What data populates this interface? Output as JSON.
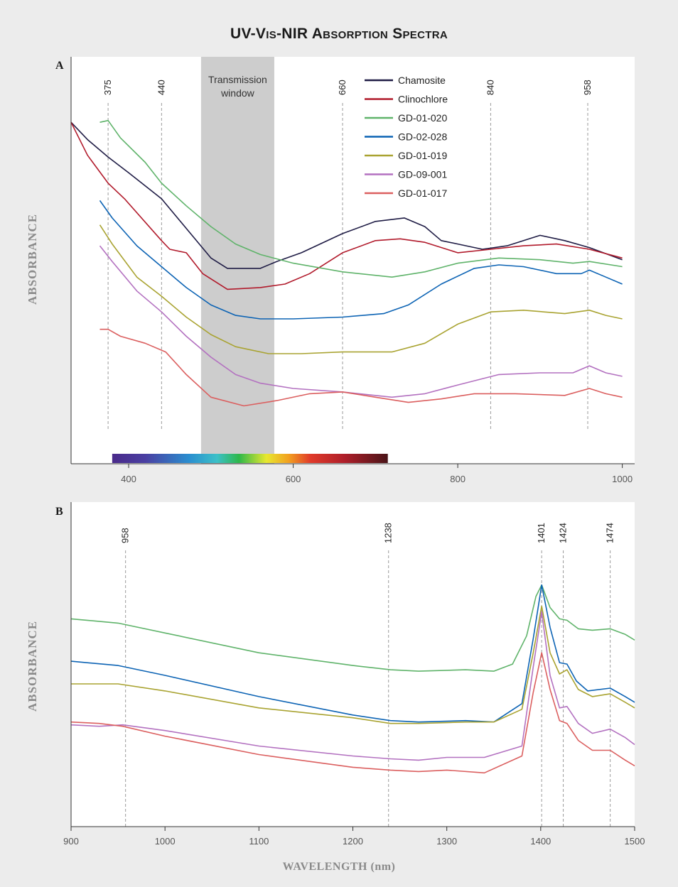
{
  "title": "UV-Vis-NIR Absorption Spectra",
  "xlabel": "WAVELENGTH (nm)",
  "colors": {
    "Chamosite": "#1f1c45",
    "Clinochlore": "#b11a2b",
    "GD-01-020": "#5fb36a",
    "GD-02-028": "#0c63b4",
    "GD-01-019": "#a9a331",
    "GD-09-001": "#b371c0",
    "GD-01-017": "#db5f5f"
  },
  "chart_data": [
    {
      "panel": "A",
      "type": "line",
      "xlabel": "",
      "ylabel": "ABSORBANCE",
      "xlim": [
        330,
        1015
      ],
      "ylim": [
        0,
        1
      ],
      "xticks": [
        400,
        600,
        800,
        1000
      ],
      "grid": false,
      "legend": "top-right",
      "markers": [
        375,
        440,
        660,
        840,
        958
      ],
      "shaded_band": {
        "label_line1": "Transmission",
        "label_line2": "window",
        "x": [
          488,
          577
        ]
      },
      "spectrum_bar_x": [
        380,
        715
      ],
      "series": [
        {
          "name": "Chamosite",
          "points": [
            [
              330,
              0.965
            ],
            [
              350,
              0.915
            ],
            [
              375,
              0.865
            ],
            [
              400,
              0.82
            ],
            [
              440,
              0.745
            ],
            [
              470,
              0.66
            ],
            [
              500,
              0.575
            ],
            [
              520,
              0.545
            ],
            [
              560,
              0.545
            ],
            [
              580,
              0.565
            ],
            [
              610,
              0.59
            ],
            [
              660,
              0.645
            ],
            [
              700,
              0.68
            ],
            [
              735,
              0.69
            ],
            [
              760,
              0.665
            ],
            [
              780,
              0.625
            ],
            [
              800,
              0.615
            ],
            [
              830,
              0.6
            ],
            [
              860,
              0.61
            ],
            [
              900,
              0.64
            ],
            [
              930,
              0.625
            ],
            [
              960,
              0.605
            ],
            [
              1000,
              0.57
            ]
          ]
        },
        {
          "name": "Clinochlore",
          "points": [
            [
              330,
              0.965
            ],
            [
              350,
              0.87
            ],
            [
              375,
              0.79
            ],
            [
              395,
              0.745
            ],
            [
              440,
              0.625
            ],
            [
              450,
              0.6
            ],
            [
              470,
              0.59
            ],
            [
              490,
              0.53
            ],
            [
              520,
              0.485
            ],
            [
              560,
              0.49
            ],
            [
              590,
              0.5
            ],
            [
              620,
              0.53
            ],
            [
              660,
              0.59
            ],
            [
              700,
              0.625
            ],
            [
              730,
              0.63
            ],
            [
              760,
              0.62
            ],
            [
              800,
              0.59
            ],
            [
              840,
              0.6
            ],
            [
              880,
              0.61
            ],
            [
              920,
              0.615
            ],
            [
              960,
              0.6
            ],
            [
              1000,
              0.575
            ]
          ]
        },
        {
          "name": "GD-01-020",
          "points": [
            [
              365,
              0.965
            ],
            [
              375,
              0.97
            ],
            [
              390,
              0.92
            ],
            [
              420,
              0.85
            ],
            [
              440,
              0.79
            ],
            [
              470,
              0.725
            ],
            [
              500,
              0.665
            ],
            [
              530,
              0.615
            ],
            [
              560,
              0.585
            ],
            [
              600,
              0.56
            ],
            [
              660,
              0.535
            ],
            [
              720,
              0.52
            ],
            [
              760,
              0.535
            ],
            [
              800,
              0.56
            ],
            [
              850,
              0.575
            ],
            [
              900,
              0.57
            ],
            [
              940,
              0.56
            ],
            [
              960,
              0.565
            ],
            [
              1000,
              0.55
            ]
          ]
        },
        {
          "name": "GD-02-028",
          "points": [
            [
              365,
              0.74
            ],
            [
              380,
              0.69
            ],
            [
              410,
              0.61
            ],
            [
              440,
              0.55
            ],
            [
              470,
              0.49
            ],
            [
              500,
              0.44
            ],
            [
              530,
              0.41
            ],
            [
              560,
              0.4
            ],
            [
              600,
              0.4
            ],
            [
              660,
              0.405
            ],
            [
              710,
              0.415
            ],
            [
              740,
              0.44
            ],
            [
              780,
              0.5
            ],
            [
              820,
              0.545
            ],
            [
              850,
              0.555
            ],
            [
              880,
              0.55
            ],
            [
              920,
              0.53
            ],
            [
              950,
              0.53
            ],
            [
              960,
              0.54
            ],
            [
              980,
              0.52
            ],
            [
              1000,
              0.5
            ]
          ]
        },
        {
          "name": "GD-01-019",
          "points": [
            [
              365,
              0.67
            ],
            [
              380,
              0.615
            ],
            [
              410,
              0.52
            ],
            [
              440,
              0.465
            ],
            [
              470,
              0.405
            ],
            [
              500,
              0.355
            ],
            [
              530,
              0.32
            ],
            [
              570,
              0.3
            ],
            [
              610,
              0.3
            ],
            [
              660,
              0.305
            ],
            [
              720,
              0.305
            ],
            [
              760,
              0.33
            ],
            [
              800,
              0.385
            ],
            [
              840,
              0.42
            ],
            [
              880,
              0.425
            ],
            [
              930,
              0.415
            ],
            [
              960,
              0.425
            ],
            [
              980,
              0.41
            ],
            [
              1000,
              0.4
            ]
          ]
        },
        {
          "name": "GD-09-001",
          "points": [
            [
              365,
              0.61
            ],
            [
              380,
              0.565
            ],
            [
              410,
              0.48
            ],
            [
              440,
              0.42
            ],
            [
              470,
              0.35
            ],
            [
              500,
              0.29
            ],
            [
              530,
              0.24
            ],
            [
              560,
              0.215
            ],
            [
              600,
              0.2
            ],
            [
              660,
              0.19
            ],
            [
              720,
              0.175
            ],
            [
              760,
              0.185
            ],
            [
              800,
              0.21
            ],
            [
              850,
              0.24
            ],
            [
              900,
              0.245
            ],
            [
              940,
              0.245
            ],
            [
              960,
              0.265
            ],
            [
              980,
              0.245
            ],
            [
              1000,
              0.235
            ]
          ]
        },
        {
          "name": "GD-01-017",
          "points": [
            [
              365,
              0.37
            ],
            [
              375,
              0.37
            ],
            [
              390,
              0.35
            ],
            [
              420,
              0.33
            ],
            [
              445,
              0.305
            ],
            [
              470,
              0.24
            ],
            [
              500,
              0.175
            ],
            [
              540,
              0.15
            ],
            [
              580,
              0.165
            ],
            [
              620,
              0.185
            ],
            [
              660,
              0.19
            ],
            [
              700,
              0.175
            ],
            [
              740,
              0.16
            ],
            [
              780,
              0.17
            ],
            [
              820,
              0.185
            ],
            [
              870,
              0.185
            ],
            [
              930,
              0.18
            ],
            [
              960,
              0.2
            ],
            [
              980,
              0.185
            ],
            [
              1000,
              0.175
            ]
          ]
        }
      ]
    },
    {
      "panel": "B",
      "type": "line",
      "xlabel": "WAVELENGTH (nm)",
      "ylabel": "ABSORBANCE",
      "xlim": [
        900,
        1500
      ],
      "ylim": [
        0,
        1
      ],
      "xticks": [
        900,
        1000,
        1100,
        1200,
        1300,
        1400,
        1500
      ],
      "grid": false,
      "markers": [
        958,
        1238,
        1401,
        1424,
        1474
      ],
      "series": [
        {
          "name": "GD-01-020",
          "points": [
            [
              900,
              0.72
            ],
            [
              950,
              0.705
            ],
            [
              1000,
              0.67
            ],
            [
              1100,
              0.6
            ],
            [
              1200,
              0.555
            ],
            [
              1240,
              0.54
            ],
            [
              1270,
              0.535
            ],
            [
              1320,
              0.54
            ],
            [
              1350,
              0.535
            ],
            [
              1370,
              0.56
            ],
            [
              1385,
              0.66
            ],
            [
              1395,
              0.8
            ],
            [
              1401,
              0.84
            ],
            [
              1410,
              0.76
            ],
            [
              1420,
              0.72
            ],
            [
              1428,
              0.715
            ],
            [
              1440,
              0.685
            ],
            [
              1455,
              0.68
            ],
            [
              1474,
              0.685
            ],
            [
              1490,
              0.665
            ],
            [
              1500,
              0.645
            ]
          ]
        },
        {
          "name": "GD-02-028",
          "points": [
            [
              900,
              0.57
            ],
            [
              950,
              0.555
            ],
            [
              1000,
              0.52
            ],
            [
              1100,
              0.445
            ],
            [
              1200,
              0.38
            ],
            [
              1240,
              0.36
            ],
            [
              1270,
              0.355
            ],
            [
              1320,
              0.36
            ],
            [
              1350,
              0.355
            ],
            [
              1380,
              0.42
            ],
            [
              1392,
              0.65
            ],
            [
              1401,
              0.84
            ],
            [
              1410,
              0.69
            ],
            [
              1420,
              0.565
            ],
            [
              1428,
              0.56
            ],
            [
              1438,
              0.5
            ],
            [
              1450,
              0.465
            ],
            [
              1474,
              0.475
            ],
            [
              1490,
              0.445
            ],
            [
              1500,
              0.425
            ]
          ]
        },
        {
          "name": "GD-01-019",
          "points": [
            [
              900,
              0.49
            ],
            [
              950,
              0.49
            ],
            [
              1000,
              0.465
            ],
            [
              1100,
              0.405
            ],
            [
              1200,
              0.37
            ],
            [
              1240,
              0.35
            ],
            [
              1270,
              0.35
            ],
            [
              1320,
              0.355
            ],
            [
              1350,
              0.355
            ],
            [
              1380,
              0.4
            ],
            [
              1392,
              0.6
            ],
            [
              1401,
              0.765
            ],
            [
              1410,
              0.6
            ],
            [
              1420,
              0.525
            ],
            [
              1428,
              0.54
            ],
            [
              1440,
              0.47
            ],
            [
              1455,
              0.445
            ],
            [
              1474,
              0.455
            ],
            [
              1490,
              0.425
            ],
            [
              1500,
              0.405
            ]
          ]
        },
        {
          "name": "GD-09-001",
          "points": [
            [
              900,
              0.345
            ],
            [
              930,
              0.34
            ],
            [
              955,
              0.345
            ],
            [
              1000,
              0.325
            ],
            [
              1100,
              0.27
            ],
            [
              1200,
              0.235
            ],
            [
              1240,
              0.225
            ],
            [
              1270,
              0.22
            ],
            [
              1300,
              0.23
            ],
            [
              1340,
              0.23
            ],
            [
              1380,
              0.27
            ],
            [
              1392,
              0.55
            ],
            [
              1401,
              0.745
            ],
            [
              1410,
              0.52
            ],
            [
              1420,
              0.405
            ],
            [
              1428,
              0.41
            ],
            [
              1440,
              0.35
            ],
            [
              1455,
              0.315
            ],
            [
              1474,
              0.33
            ],
            [
              1490,
              0.3
            ],
            [
              1500,
              0.275
            ]
          ]
        },
        {
          "name": "GD-01-017",
          "points": [
            [
              900,
              0.355
            ],
            [
              930,
              0.35
            ],
            [
              955,
              0.34
            ],
            [
              1000,
              0.305
            ],
            [
              1100,
              0.24
            ],
            [
              1200,
              0.195
            ],
            [
              1240,
              0.185
            ],
            [
              1270,
              0.18
            ],
            [
              1300,
              0.185
            ],
            [
              1340,
              0.175
            ],
            [
              1380,
              0.235
            ],
            [
              1392,
              0.46
            ],
            [
              1401,
              0.6
            ],
            [
              1410,
              0.47
            ],
            [
              1420,
              0.36
            ],
            [
              1428,
              0.35
            ],
            [
              1440,
              0.29
            ],
            [
              1455,
              0.255
            ],
            [
              1474,
              0.255
            ],
            [
              1490,
              0.22
            ],
            [
              1500,
              0.2
            ]
          ]
        }
      ]
    }
  ]
}
